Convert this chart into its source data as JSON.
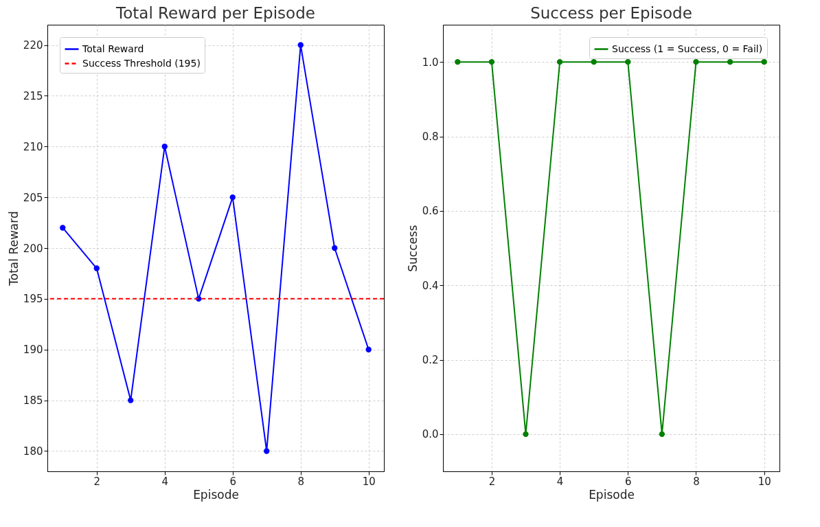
{
  "chart_data": [
    {
      "type": "line",
      "title": "Total Reward per Episode",
      "xlabel": "Episode",
      "ylabel": "Total Reward",
      "x": [
        1,
        2,
        3,
        4,
        5,
        6,
        7,
        8,
        9,
        10
      ],
      "series": [
        {
          "name": "Total Reward",
          "color": "#0000ff",
          "values": [
            202,
            198,
            185,
            210,
            195,
            205,
            180,
            220,
            200,
            190
          ]
        }
      ],
      "ref_lines": [
        {
          "axis": "y",
          "value": 195,
          "label": "Success Threshold (195)",
          "color": "#ff0000",
          "line_style": "dashed"
        }
      ],
      "xlim": [
        0.55,
        10.45
      ],
      "xticks": [
        2,
        4,
        6,
        8,
        10
      ],
      "ylim": [
        178,
        222
      ],
      "yticks": [
        180,
        185,
        190,
        195,
        200,
        205,
        210,
        215,
        220
      ],
      "grid": true,
      "legend": "top left",
      "marker": "circle",
      "line_style": "solid"
    },
    {
      "type": "line",
      "title": "Success per Episode",
      "xlabel": "Episode",
      "ylabel": "Success",
      "x": [
        1,
        2,
        3,
        4,
        5,
        6,
        7,
        8,
        9,
        10
      ],
      "series": [
        {
          "name": "Success (1 = Success, 0 = Fail)",
          "color": "#008000",
          "values": [
            1,
            1,
            0,
            1,
            1,
            1,
            0,
            1,
            1,
            1
          ]
        }
      ],
      "xlim": [
        0.57,
        10.45
      ],
      "xticks": [
        2,
        4,
        6,
        8,
        10
      ],
      "ylim": [
        -0.1,
        1.1
      ],
      "yticks": [
        {
          "value": 0,
          "label": "0.0"
        },
        {
          "value": 0.2,
          "label": "0.2"
        },
        {
          "value": 0.4,
          "label": "0.4"
        },
        {
          "value": 0.6,
          "label": "0.6"
        },
        {
          "value": 0.8,
          "label": "0.8"
        },
        {
          "value": 1,
          "label": "1.0"
        }
      ],
      "grid": true,
      "legend": "top right",
      "marker": "circle",
      "line_style": "solid"
    }
  ]
}
